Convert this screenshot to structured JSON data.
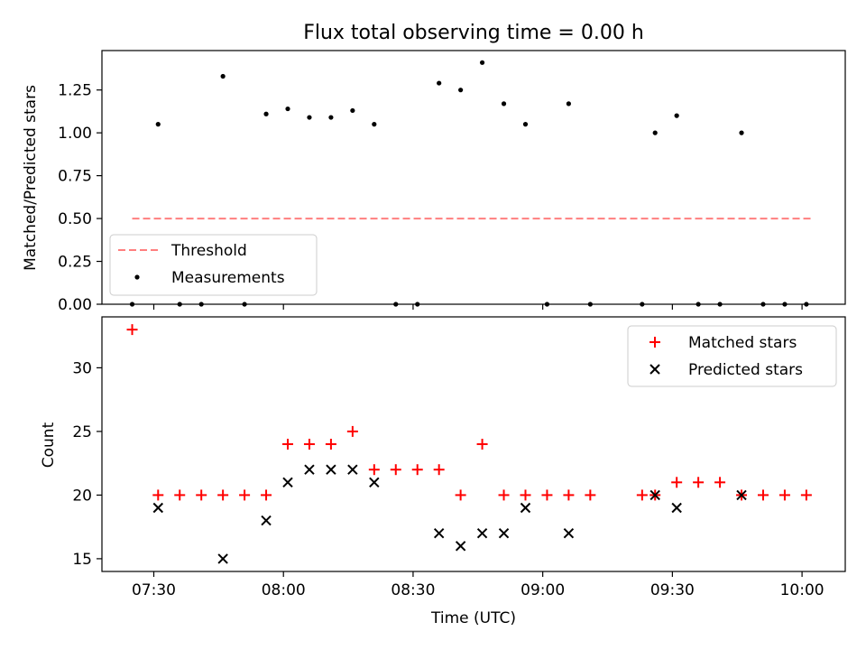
{
  "chart_data": [
    {
      "type": "scatter",
      "title": "Flux total observing time = 0.00 h",
      "ylabel": "Matched/Predicted stars",
      "xlabel": "",
      "xlim": [
        "07:18",
        "10:10"
      ],
      "ylim": [
        0,
        1.48
      ],
      "x_ticks": [
        "07:30",
        "08:00",
        "08:30",
        "09:00",
        "09:30",
        "10:00"
      ],
      "y_ticks": [
        "0.00",
        "0.25",
        "0.50",
        "0.75",
        "1.00",
        "1.25"
      ],
      "legend_position": "lower-left",
      "threshold": {
        "name": "Threshold",
        "x": [
          "07:25",
          "10:02"
        ],
        "y": 0.5,
        "color": "#ff7f7f",
        "style": "dashed"
      },
      "series": [
        {
          "name": "Measurements",
          "marker": "dot",
          "color": "#000000",
          "points": [
            [
              "07:25",
              0.0
            ],
            [
              "07:31",
              1.05
            ],
            [
              "07:36",
              0.0
            ],
            [
              "07:41",
              0.0
            ],
            [
              "07:46",
              1.33
            ],
            [
              "07:51",
              0.0
            ],
            [
              "07:56",
              1.11
            ],
            [
              "08:01",
              1.14
            ],
            [
              "08:06",
              1.09
            ],
            [
              "08:11",
              1.09
            ],
            [
              "08:16",
              1.13
            ],
            [
              "08:21",
              1.05
            ],
            [
              "08:26",
              0.0
            ],
            [
              "08:31",
              0.0
            ],
            [
              "08:36",
              1.29
            ],
            [
              "08:41",
              1.25
            ],
            [
              "08:46",
              1.41
            ],
            [
              "08:51",
              1.17
            ],
            [
              "08:56",
              1.05
            ],
            [
              "09:01",
              0.0
            ],
            [
              "09:06",
              1.17
            ],
            [
              "09:11",
              0.0
            ],
            [
              "09:23",
              0.0
            ],
            [
              "09:26",
              1.0
            ],
            [
              "09:31",
              1.1
            ],
            [
              "09:36",
              0.0
            ],
            [
              "09:41",
              0.0
            ],
            [
              "09:46",
              1.0
            ],
            [
              "09:51",
              0.0
            ],
            [
              "09:56",
              0.0
            ],
            [
              "10:01",
              0.0
            ]
          ]
        }
      ]
    },
    {
      "type": "scatter",
      "title": "",
      "xlabel": "Time (UTC)",
      "ylabel": "Count",
      "xlim": [
        "07:18",
        "10:10"
      ],
      "ylim": [
        14,
        34
      ],
      "x_ticks": [
        "07:30",
        "08:00",
        "08:30",
        "09:00",
        "09:30",
        "10:00"
      ],
      "y_ticks": [
        "15",
        "20",
        "25",
        "30"
      ],
      "legend_position": "top-right",
      "series": [
        {
          "name": "Matched stars",
          "marker": "plus",
          "color": "#ff0000",
          "points": [
            [
              "07:25",
              33
            ],
            [
              "07:31",
              20
            ],
            [
              "07:36",
              20
            ],
            [
              "07:41",
              20
            ],
            [
              "07:46",
              20
            ],
            [
              "07:51",
              20
            ],
            [
              "07:56",
              20
            ],
            [
              "08:01",
              24
            ],
            [
              "08:06",
              24
            ],
            [
              "08:11",
              24
            ],
            [
              "08:16",
              25
            ],
            [
              "08:21",
              22
            ],
            [
              "08:26",
              22
            ],
            [
              "08:31",
              22
            ],
            [
              "08:36",
              22
            ],
            [
              "08:41",
              20
            ],
            [
              "08:46",
              24
            ],
            [
              "08:51",
              20
            ],
            [
              "08:56",
              20
            ],
            [
              "09:01",
              20
            ],
            [
              "09:06",
              20
            ],
            [
              "09:11",
              20
            ],
            [
              "09:23",
              20
            ],
            [
              "09:26",
              20
            ],
            [
              "09:31",
              21
            ],
            [
              "09:36",
              21
            ],
            [
              "09:41",
              21
            ],
            [
              "09:46",
              20
            ],
            [
              "09:51",
              20
            ],
            [
              "09:56",
              20
            ],
            [
              "10:01",
              20
            ]
          ]
        },
        {
          "name": "Predicted stars",
          "marker": "x",
          "color": "#000000",
          "points": [
            [
              "07:31",
              19
            ],
            [
              "07:46",
              15
            ],
            [
              "07:56",
              18
            ],
            [
              "08:01",
              21
            ],
            [
              "08:06",
              22
            ],
            [
              "08:11",
              22
            ],
            [
              "08:16",
              22
            ],
            [
              "08:21",
              21
            ],
            [
              "08:36",
              17
            ],
            [
              "08:41",
              16
            ],
            [
              "08:46",
              17
            ],
            [
              "08:51",
              17
            ],
            [
              "08:56",
              19
            ],
            [
              "09:06",
              17
            ],
            [
              "09:26",
              20
            ],
            [
              "09:31",
              19
            ],
            [
              "09:46",
              20
            ]
          ]
        }
      ]
    }
  ]
}
